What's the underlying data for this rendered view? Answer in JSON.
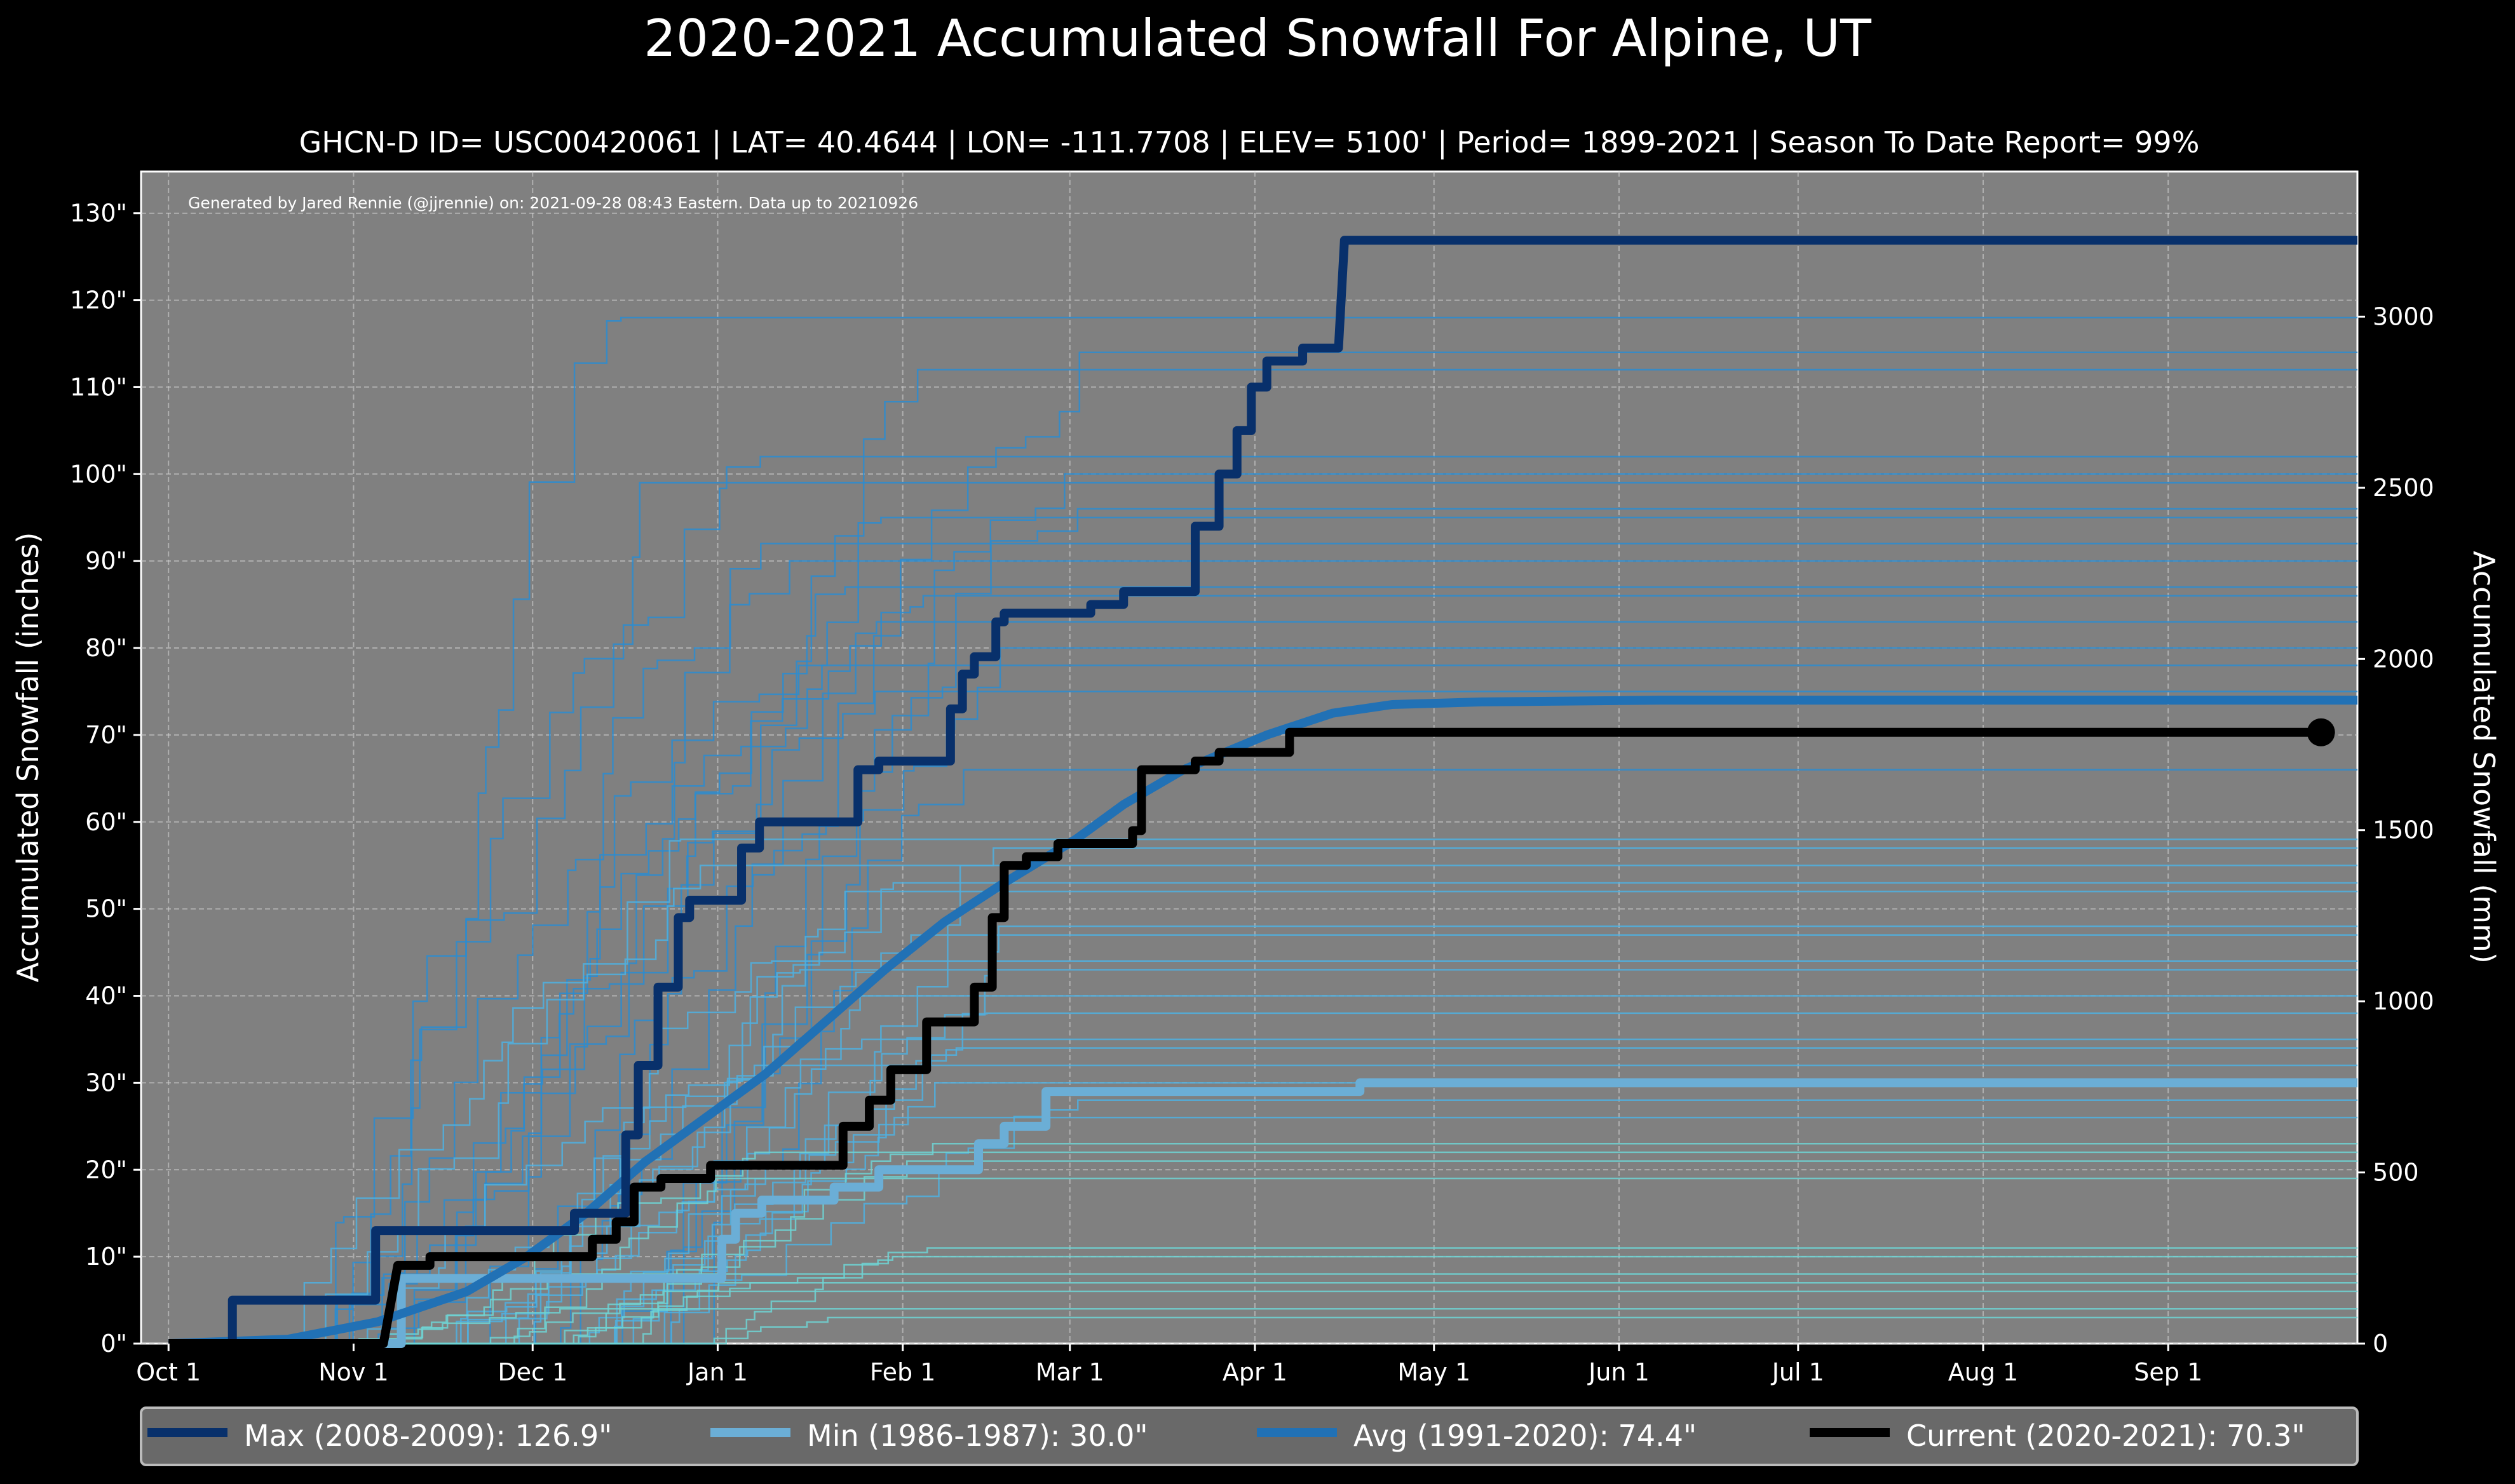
{
  "chart_data": {
    "type": "line",
    "title": "2020-2021 Accumulated Snowfall For Alpine, UT",
    "subtitle": "GHCN-D ID= USC00420061 | LAT= 40.4644 | LON= -111.7708 | ELEV= 5100' | Period= 1899-2021 | Season To Date Report= 99%",
    "credit": "Generated by Jared Rennie (@jjrennie) on: 2021-09-28 08:43 Eastern. Data up to 20210926",
    "ylabel": "Accumulated Snowfall (inches)",
    "ylabel_right": "Accumulated Snowfall (mm)",
    "x_unit": "days since Oct 1",
    "xlim": [
      -4.6,
      366.7
    ],
    "ylim": [
      0,
      134.8
    ],
    "grid": true,
    "legend_position": "bottom",
    "x_ticks": [
      {
        "day": 0,
        "label": "Oct 1"
      },
      {
        "day": 31,
        "label": "Nov 1"
      },
      {
        "day": 61,
        "label": "Dec 1"
      },
      {
        "day": 92,
        "label": "Jan 1"
      },
      {
        "day": 123,
        "label": "Feb 1"
      },
      {
        "day": 151,
        "label": "Mar 1"
      },
      {
        "day": 182,
        "label": "Apr 1"
      },
      {
        "day": 212,
        "label": "May 1"
      },
      {
        "day": 243,
        "label": "Jun 1"
      },
      {
        "day": 273,
        "label": "Jul 1"
      },
      {
        "day": 304,
        "label": "Aug 1"
      },
      {
        "day": 335,
        "label": "Sep 1"
      }
    ],
    "y_ticks": [
      {
        "value": 0,
        "label": "0\""
      },
      {
        "value": 10,
        "label": "10\""
      },
      {
        "value": 20,
        "label": "20\""
      },
      {
        "value": 30,
        "label": "30\""
      },
      {
        "value": 40,
        "label": "40\""
      },
      {
        "value": 50,
        "label": "50\""
      },
      {
        "value": 60,
        "label": "60\""
      },
      {
        "value": 70,
        "label": "70\""
      },
      {
        "value": 80,
        "label": "80\""
      },
      {
        "value": 90,
        "label": "90\""
      },
      {
        "value": 100,
        "label": "100\""
      },
      {
        "value": 110,
        "label": "110\""
      },
      {
        "value": 120,
        "label": "120\""
      },
      {
        "value": 130,
        "label": "130\""
      }
    ],
    "y_ticks_right_mm": [
      {
        "value": 0,
        "label": "0"
      },
      {
        "value": 500,
        "label": "500"
      },
      {
        "value": 1000,
        "label": "1000"
      },
      {
        "value": 1500,
        "label": "1500"
      },
      {
        "value": 2000,
        "label": "2000"
      },
      {
        "value": 2500,
        "label": "2500"
      },
      {
        "value": 3000,
        "label": "3000"
      }
    ],
    "other_seasons_final": [
      118,
      114,
      112,
      102,
      100,
      99,
      96,
      95,
      92,
      90,
      87,
      86,
      83,
      80,
      78,
      75,
      66,
      58,
      57,
      55,
      53,
      52,
      48,
      47,
      44,
      43,
      40,
      38,
      35,
      34,
      32,
      30,
      28,
      26,
      23,
      22,
      21,
      19,
      11,
      10,
      8,
      7,
      6,
      4,
      3
    ],
    "series": [
      {
        "name": "Max",
        "legend": "Max (2008-2009):  126.9\"",
        "color": "#08306b",
        "step": true,
        "points": [
          [
            0,
            0
          ],
          [
            10.7,
            0
          ],
          [
            10.7,
            5
          ],
          [
            34.7,
            5
          ],
          [
            34.7,
            13
          ],
          [
            68,
            13
          ],
          [
            68,
            15
          ],
          [
            76.6,
            15
          ],
          [
            76.6,
            24
          ],
          [
            78.7,
            24
          ],
          [
            78.7,
            32
          ],
          [
            82,
            32
          ],
          [
            82,
            41
          ],
          [
            85.4,
            41
          ],
          [
            85.4,
            49
          ],
          [
            87.3,
            49
          ],
          [
            87.3,
            51
          ],
          [
            96,
            51
          ],
          [
            96,
            57
          ],
          [
            99,
            57
          ],
          [
            99,
            60
          ],
          [
            115.5,
            60
          ],
          [
            115.5,
            66
          ],
          [
            119,
            66
          ],
          [
            119,
            67
          ],
          [
            131,
            67
          ],
          [
            131,
            73
          ],
          [
            133,
            73
          ],
          [
            133,
            77
          ],
          [
            135,
            77
          ],
          [
            135,
            79
          ],
          [
            138.6,
            79
          ],
          [
            138.6,
            83
          ],
          [
            140,
            83
          ],
          [
            140,
            84
          ],
          [
            154.5,
            84
          ],
          [
            154.5,
            85
          ],
          [
            160,
            85
          ],
          [
            160,
            86.5
          ],
          [
            172,
            86.5
          ],
          [
            172,
            94
          ],
          [
            176,
            94
          ],
          [
            176,
            100
          ],
          [
            179,
            100
          ],
          [
            179,
            105
          ],
          [
            181.4,
            105
          ],
          [
            181.4,
            110
          ],
          [
            184,
            110
          ],
          [
            184,
            113
          ],
          [
            190,
            113
          ],
          [
            190,
            114.5
          ],
          [
            196,
            114.5
          ],
          [
            197,
            126.9
          ],
          [
            366.7,
            126.9
          ]
        ]
      },
      {
        "name": "Min",
        "legend": "Min (1986-1987):   30.0\"",
        "color": "#6baed6",
        "step": true,
        "points": [
          [
            0,
            0
          ],
          [
            39,
            0
          ],
          [
            39,
            7.5
          ],
          [
            92.7,
            7.5
          ],
          [
            92.7,
            12
          ],
          [
            95,
            12
          ],
          [
            95,
            15
          ],
          [
            99.4,
            15
          ],
          [
            99.4,
            16.5
          ],
          [
            111.5,
            16.5
          ],
          [
            111.5,
            18
          ],
          [
            119,
            18
          ],
          [
            119,
            20
          ],
          [
            135.7,
            20
          ],
          [
            135.7,
            23
          ],
          [
            140,
            23
          ],
          [
            140,
            25
          ],
          [
            147,
            25
          ],
          [
            147,
            29
          ],
          [
            199.6,
            29
          ],
          [
            199.6,
            30
          ],
          [
            366.7,
            30
          ]
        ]
      },
      {
        "name": "Avg",
        "legend": "Avg (1991-2020):   74.4\"",
        "color": "#2171b5",
        "step": false,
        "points": [
          [
            0,
            0
          ],
          [
            20,
            0.5
          ],
          [
            35,
            2.5
          ],
          [
            50,
            6
          ],
          [
            60,
            10
          ],
          [
            70,
            15
          ],
          [
            80,
            21
          ],
          [
            90,
            26
          ],
          [
            100,
            31
          ],
          [
            110,
            37
          ],
          [
            120,
            43
          ],
          [
            130,
            48.5
          ],
          [
            140,
            53
          ],
          [
            152,
            58
          ],
          [
            160,
            62
          ],
          [
            170,
            66
          ],
          [
            184,
            70
          ],
          [
            195,
            72.5
          ],
          [
            205,
            73.5
          ],
          [
            220,
            73.8
          ],
          [
            250,
            74
          ],
          [
            366.7,
            74
          ]
        ]
      },
      {
        "name": "Current",
        "legend": "Current (2020-2021):   70.3\"",
        "color": "#000000",
        "step": true,
        "points": [
          [
            0,
            0
          ],
          [
            36,
            0
          ],
          [
            38.4,
            9
          ],
          [
            43.8,
            9
          ],
          [
            43.8,
            10
          ],
          [
            71,
            10
          ],
          [
            71,
            12
          ],
          [
            75,
            12
          ],
          [
            75,
            14
          ],
          [
            78,
            14
          ],
          [
            78,
            18
          ],
          [
            82.5,
            18
          ],
          [
            82.5,
            19
          ],
          [
            90.8,
            19
          ],
          [
            90.8,
            20.5
          ],
          [
            113,
            20.5
          ],
          [
            113,
            25
          ],
          [
            117.4,
            25
          ],
          [
            117.4,
            28
          ],
          [
            121,
            28
          ],
          [
            121,
            31.5
          ],
          [
            127,
            31.5
          ],
          [
            127,
            37
          ],
          [
            135,
            37
          ],
          [
            135,
            41
          ],
          [
            138,
            41
          ],
          [
            138,
            49
          ],
          [
            140,
            49
          ],
          [
            140,
            55
          ],
          [
            143.7,
            55
          ],
          [
            143.7,
            56
          ],
          [
            149,
            56
          ],
          [
            149,
            57.5
          ],
          [
            161.5,
            57.5
          ],
          [
            161.5,
            59
          ],
          [
            163,
            59
          ],
          [
            163,
            66
          ],
          [
            172,
            66
          ],
          [
            172,
            67
          ],
          [
            176,
            67
          ],
          [
            176,
            68
          ],
          [
            187.8,
            68
          ],
          [
            187.8,
            70.3
          ],
          [
            360.6,
            70.3
          ]
        ]
      }
    ]
  }
}
